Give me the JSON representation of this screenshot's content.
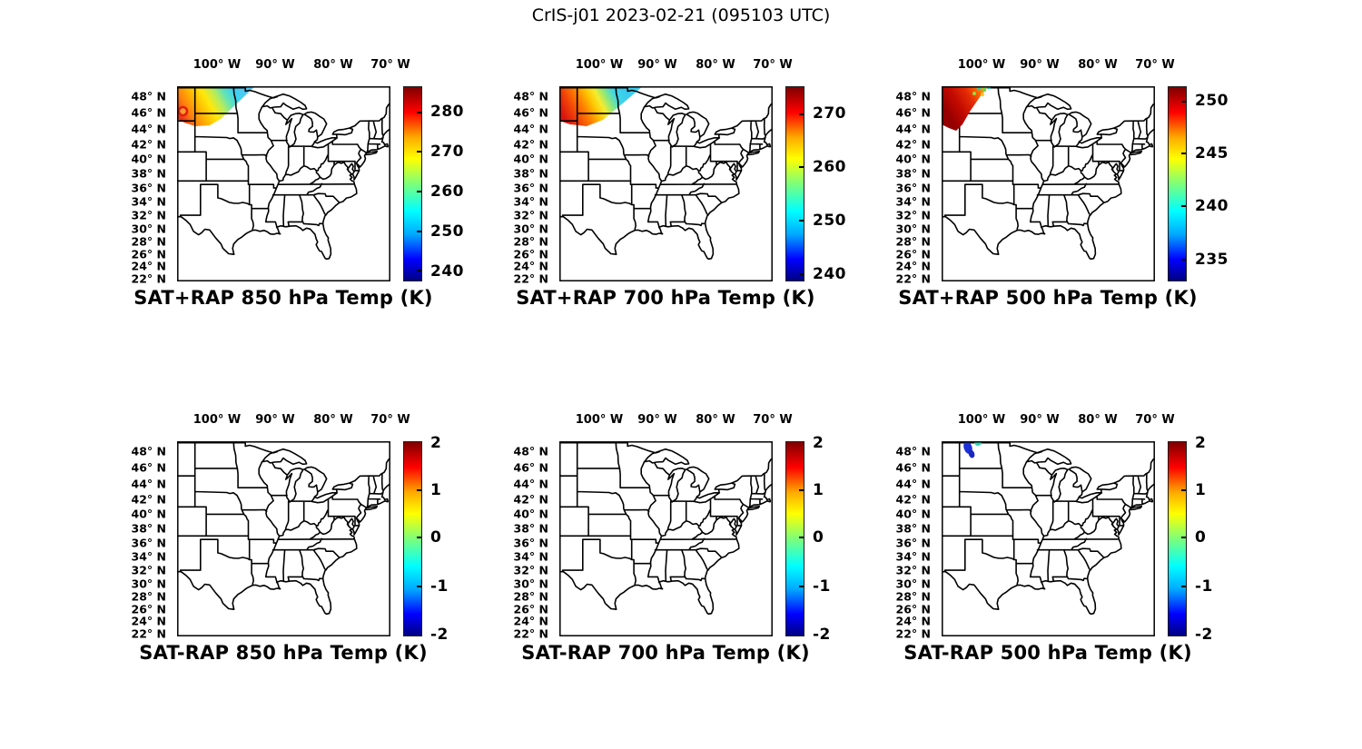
{
  "figure": {
    "title": "CrIS-j01 2023-02-21 (095103 UTC)",
    "background": "#ffffff"
  },
  "axes": {
    "lon_ticks": [
      "100° W",
      "90° W",
      "80° W",
      "70° W"
    ],
    "lat_ticks": [
      "48° N",
      "46° N",
      "44° N",
      "42° N",
      "40° N",
      "38° N",
      "36° N",
      "34° N",
      "32° N",
      "30° N",
      "28° N",
      "26° N",
      "24° N",
      "22° N"
    ]
  },
  "colors": {
    "map_outline": "#000000",
    "colormap": "jet",
    "jet_stops": [
      "#000083",
      "#0000ff",
      "#00aaff",
      "#00ffff",
      "#7dff7a",
      "#ffff00",
      "#ffaa00",
      "#ff0000",
      "#800000"
    ],
    "swath_warm_max": "#e0200e",
    "swath_cool": "#3cd2f0",
    "diff_neg_strong": "#1c30d8",
    "diff_neg_weak": "#2cd4b4"
  },
  "panels": [
    {
      "id": "sat-plus-rap-850",
      "title": "SAT+RAP 850 hPa Temp (K)",
      "row": 0,
      "col": 0,
      "swath": "swath850",
      "colorbar_ticks": [
        {
          "label": "280",
          "pos": 13
        },
        {
          "label": "270",
          "pos": 33.5
        },
        {
          "label": "260",
          "pos": 54
        },
        {
          "label": "250",
          "pos": 74.5
        },
        {
          "label": "240",
          "pos": 95
        }
      ]
    },
    {
      "id": "sat-plus-rap-700",
      "title": "SAT+RAP 700 hPa Temp (K)",
      "row": 0,
      "col": 1,
      "swath": "swath700",
      "colorbar_ticks": [
        {
          "label": "270",
          "pos": 14
        },
        {
          "label": "260",
          "pos": 41.5
        },
        {
          "label": "250",
          "pos": 69
        },
        {
          "label": "240",
          "pos": 96.5
        }
      ]
    },
    {
      "id": "sat-plus-rap-500",
      "title": "SAT+RAP 500 hPa Temp (K)",
      "row": 0,
      "col": 2,
      "swath": "swath500",
      "colorbar_ticks": [
        {
          "label": "250",
          "pos": 7.5
        },
        {
          "label": "245",
          "pos": 34.5
        },
        {
          "label": "240",
          "pos": 61.5
        },
        {
          "label": "235",
          "pos": 89
        }
      ]
    },
    {
      "id": "sat-minus-rap-850",
      "title": "SAT-RAP 850 hPa Temp (K)",
      "row": 1,
      "col": 0,
      "swath": null,
      "colorbar_ticks": [
        {
          "label": "2",
          "pos": 1
        },
        {
          "label": "1",
          "pos": 25
        },
        {
          "label": "0",
          "pos": 49.5
        },
        {
          "label": "-1",
          "pos": 74.5
        },
        {
          "label": "-2",
          "pos": 99
        }
      ]
    },
    {
      "id": "sat-minus-rap-700",
      "title": "SAT-RAP 700 hPa Temp (K)",
      "row": 1,
      "col": 1,
      "swath": null,
      "colorbar_ticks": [
        {
          "label": "2",
          "pos": 1
        },
        {
          "label": "1",
          "pos": 25
        },
        {
          "label": "0",
          "pos": 49.5
        },
        {
          "label": "-1",
          "pos": 74.5
        },
        {
          "label": "-2",
          "pos": 99
        }
      ]
    },
    {
      "id": "sat-minus-rap-500",
      "title": "SAT-RAP 500 hPa Temp (K)",
      "row": 1,
      "col": 2,
      "swath": "diff500",
      "colorbar_ticks": [
        {
          "label": "2",
          "pos": 1
        },
        {
          "label": "1",
          "pos": 25
        },
        {
          "label": "0",
          "pos": 49.5
        },
        {
          "label": "-1",
          "pos": 74.5
        },
        {
          "label": "-2",
          "pos": 99
        }
      ]
    }
  ],
  "chart_data": [
    {
      "type": "heatmap",
      "title": "SAT+RAP 850 hPa Temp (K)",
      "projection": "mercator",
      "lon_range_deg": [
        -107,
        -70
      ],
      "lat_range_deg": [
        21.5,
        49.3
      ],
      "lon_ticks_deg_w": [
        100,
        90,
        80,
        70
      ],
      "lat_ticks_deg_n": [
        48,
        46,
        44,
        42,
        40,
        38,
        36,
        34,
        32,
        30,
        28,
        26,
        24,
        22
      ],
      "colormap": "jet",
      "units": "K",
      "colorbar_ticks": [
        240,
        250,
        260,
        270,
        280
      ],
      "colorbar_range": [
        237,
        286
      ],
      "swath_region": "CrIS overpass swath in NW corner, ~44.5-49.3N / 99.5-107W (Montana, western North Dakota)",
      "swath_values": "warm ~275-280 K (orange/red with red ring maximum near 46N 106.5W) in SW, grading to ~250 K (cyan) at NE edge"
    },
    {
      "type": "heatmap",
      "title": "SAT+RAP 700 hPa Temp (K)",
      "projection": "mercator",
      "lon_range_deg": [
        -107,
        -70
      ],
      "lat_range_deg": [
        21.5,
        49.3
      ],
      "lon_ticks_deg_w": [
        100,
        90,
        80,
        70
      ],
      "lat_ticks_deg_n": [
        48,
        46,
        44,
        42,
        40,
        38,
        36,
        34,
        32,
        30,
        28,
        26,
        24,
        22
      ],
      "colormap": "jet",
      "units": "K",
      "colorbar_ticks": [
        240,
        250,
        260,
        270
      ],
      "colorbar_range": [
        238.5,
        275
      ],
      "swath_region": "same CrIS swath, NW corner ~44.5-49.3N / 99.5-107W",
      "swath_values": "warm ~268-271 K (red/orange) in SW core, grading through yellow to ~248 K (cyan) at NE edge"
    },
    {
      "type": "heatmap",
      "title": "SAT+RAP 500 hPa Temp (K)",
      "projection": "mercator",
      "lon_range_deg": [
        -107,
        -70
      ],
      "lat_range_deg": [
        21.5,
        49.3
      ],
      "lon_ticks_deg_w": [
        100,
        90,
        80,
        70
      ],
      "lat_ticks_deg_n": [
        48,
        46,
        44,
        42,
        40,
        38,
        36,
        34,
        32,
        30,
        28,
        26,
        24,
        22
      ],
      "colormap": "jet",
      "units": "K",
      "colorbar_ticks": [
        235,
        240,
        245,
        250
      ],
      "colorbar_range": [
        233.5,
        251.5
      ],
      "swath_region": "same CrIS swath, mostly Montana, ~44.5-49.3N / 98.5-107W",
      "swath_values": "nearly uniform ~249-251 K (red/dark red) with orange-yellow fringe and a few ~241-243 K (green/teal) footprints on the NE edge"
    },
    {
      "type": "heatmap",
      "title": "SAT-RAP 850 hPa Temp (K)",
      "projection": "mercator",
      "lon_range_deg": [
        -107,
        -70
      ],
      "lat_range_deg": [
        21.5,
        49.3
      ],
      "lon_ticks_deg_w": [
        100,
        90,
        80,
        70
      ],
      "lat_ticks_deg_n": [
        48,
        46,
        44,
        42,
        40,
        38,
        36,
        34,
        32,
        30,
        28,
        26,
        24,
        22
      ],
      "colormap": "jet",
      "units": "K",
      "colorbar_ticks": [
        -2,
        -1,
        0,
        1,
        2
      ],
      "colorbar_range": [
        -2,
        2
      ],
      "swath_region": "none visible",
      "swath_values": "no difference data plotted"
    },
    {
      "type": "heatmap",
      "title": "SAT-RAP 700 hPa Temp (K)",
      "projection": "mercator",
      "lon_range_deg": [
        -107,
        -70
      ],
      "lat_range_deg": [
        21.5,
        49.3
      ],
      "lon_ticks_deg_w": [
        100,
        90,
        80,
        70
      ],
      "lat_ticks_deg_n": [
        48,
        46,
        44,
        42,
        40,
        38,
        36,
        34,
        32,
        30,
        28,
        26,
        24,
        22
      ],
      "colormap": "jet",
      "units": "K",
      "colorbar_ticks": [
        -2,
        -1,
        0,
        1,
        2
      ],
      "colorbar_range": [
        -2,
        2
      ],
      "swath_region": "none visible",
      "swath_values": "no difference data plotted"
    },
    {
      "type": "heatmap",
      "title": "SAT-RAP 500 hPa Temp (K)",
      "projection": "mercator",
      "lon_range_deg": [
        -107,
        -70
      ],
      "lat_range_deg": [
        21.5,
        49.3
      ],
      "lon_ticks_deg_w": [
        100,
        90,
        80,
        70
      ],
      "lat_ticks_deg_n": [
        48,
        46,
        44,
        42,
        40,
        38,
        36,
        34,
        32,
        30,
        28,
        26,
        24,
        22
      ],
      "colormap": "jet",
      "units": "K",
      "colorbar_ticks": [
        -2,
        -1,
        0,
        1,
        2
      ],
      "colorbar_range": [
        -2,
        2
      ],
      "swath_region": "two small clusters near 48.3-49.2N / 102-103.8W (NW North Dakota)",
      "swath_values": "dark-blue cluster ~ -1.7 K and a turquoise cluster ~ -0.4 K"
    }
  ]
}
